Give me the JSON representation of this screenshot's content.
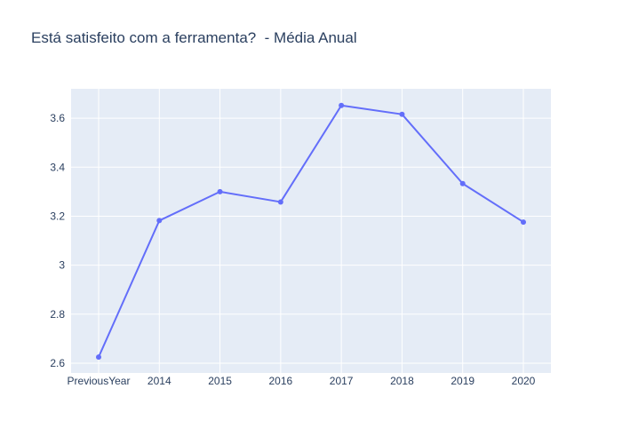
{
  "chart_data": {
    "type": "line",
    "title": "Está satisfeito com a ferramenta?  - Média Anual",
    "xlabel": "",
    "ylabel": "",
    "categories": [
      "PreviousYear",
      "2014",
      "2015",
      "2016",
      "2017",
      "2018",
      "2019",
      "2020"
    ],
    "series": [
      {
        "values": [
          2.625,
          3.182,
          3.3,
          3.258,
          3.652,
          3.616,
          3.333,
          3.176
        ]
      }
    ],
    "ylim": [
      2.56,
      3.72
    ],
    "yticks": [
      2.6,
      2.8,
      3,
      3.2,
      3.4,
      3.6
    ],
    "ytick_labels": [
      "2.6",
      "2.8",
      "3",
      "3.2",
      "3.4",
      "3.6"
    ],
    "grid": true,
    "legend": "none",
    "colors": {
      "line": "#636efa",
      "plot_bg": "#e5ecf6",
      "grid": "#ffffff",
      "text": "#2a3f5f"
    }
  }
}
